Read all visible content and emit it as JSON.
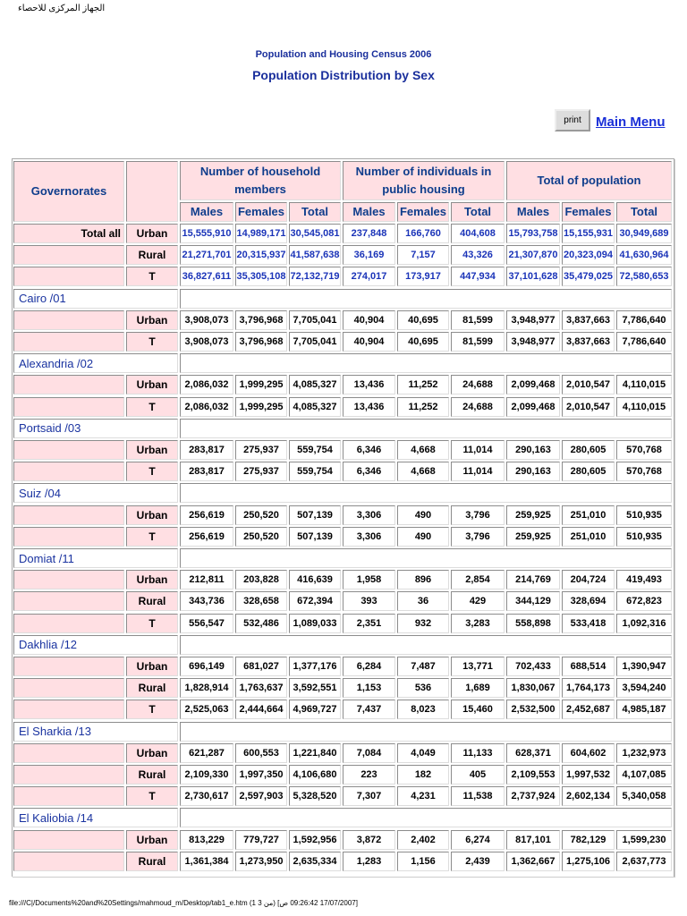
{
  "header": {
    "org": "الجهاز المركزى للاحصاء",
    "subtitle": "Population and Housing Census 2006",
    "title": "Population Distribution by Sex",
    "print": "print",
    "main_menu": "Main Menu"
  },
  "table": {
    "columns": {
      "governorates": "Governorates",
      "groups": [
        "Number of household members",
        "Number of individuals in public housing",
        "Total of population"
      ],
      "sub": [
        "Males",
        "Females",
        "Total",
        "Males",
        "Females",
        "Total",
        "Males",
        "Females",
        "Total"
      ]
    },
    "total": {
      "label": "Total all",
      "rows": [
        {
          "type": "Urban",
          "values": [
            "15,555,910",
            "14,989,171",
            "30,545,081",
            "237,848",
            "166,760",
            "404,608",
            "15,793,758",
            "15,155,931",
            "30,949,689"
          ]
        },
        {
          "type": "Rural",
          "values": [
            "21,271,701",
            "20,315,937",
            "41,587,638",
            "36,169",
            "7,157",
            "43,326",
            "21,307,870",
            "20,323,094",
            "41,630,964"
          ]
        },
        {
          "type": "T",
          "values": [
            "36,827,611",
            "35,305,108",
            "72,132,719",
            "274,017",
            "173,917",
            "447,934",
            "37,101,628",
            "35,479,025",
            "72,580,653"
          ]
        }
      ]
    },
    "sections": [
      {
        "name": "Cairo /01",
        "rows": [
          {
            "type": "Urban",
            "values": [
              "3,908,073",
              "3,796,968",
              "7,705,041",
              "40,904",
              "40,695",
              "81,599",
              "3,948,977",
              "3,837,663",
              "7,786,640"
            ]
          },
          {
            "type": "T",
            "values": [
              "3,908,073",
              "3,796,968",
              "7,705,041",
              "40,904",
              "40,695",
              "81,599",
              "3,948,977",
              "3,837,663",
              "7,786,640"
            ]
          }
        ]
      },
      {
        "name": "Alexandria /02",
        "rows": [
          {
            "type": "Urban",
            "values": [
              "2,086,032",
              "1,999,295",
              "4,085,327",
              "13,436",
              "11,252",
              "24,688",
              "2,099,468",
              "2,010,547",
              "4,110,015"
            ]
          },
          {
            "type": "T",
            "values": [
              "2,086,032",
              "1,999,295",
              "4,085,327",
              "13,436",
              "11,252",
              "24,688",
              "2,099,468",
              "2,010,547",
              "4,110,015"
            ]
          }
        ]
      },
      {
        "name": "Portsaid /03",
        "rows": [
          {
            "type": "Urban",
            "values": [
              "283,817",
              "275,937",
              "559,754",
              "6,346",
              "4,668",
              "11,014",
              "290,163",
              "280,605",
              "570,768"
            ]
          },
          {
            "type": "T",
            "values": [
              "283,817",
              "275,937",
              "559,754",
              "6,346",
              "4,668",
              "11,014",
              "290,163",
              "280,605",
              "570,768"
            ]
          }
        ]
      },
      {
        "name": "Suiz /04",
        "rows": [
          {
            "type": "Urban",
            "values": [
              "256,619",
              "250,520",
              "507,139",
              "3,306",
              "490",
              "3,796",
              "259,925",
              "251,010",
              "510,935"
            ]
          },
          {
            "type": "T",
            "values": [
              "256,619",
              "250,520",
              "507,139",
              "3,306",
              "490",
              "3,796",
              "259,925",
              "251,010",
              "510,935"
            ]
          }
        ]
      },
      {
        "name": "Domiat /11",
        "rows": [
          {
            "type": "Urban",
            "values": [
              "212,811",
              "203,828",
              "416,639",
              "1,958",
              "896",
              "2,854",
              "214,769",
              "204,724",
              "419,493"
            ]
          },
          {
            "type": "Rural",
            "values": [
              "343,736",
              "328,658",
              "672,394",
              "393",
              "36",
              "429",
              "344,129",
              "328,694",
              "672,823"
            ]
          },
          {
            "type": "T",
            "values": [
              "556,547",
              "532,486",
              "1,089,033",
              "2,351",
              "932",
              "3,283",
              "558,898",
              "533,418",
              "1,092,316"
            ]
          }
        ]
      },
      {
        "name": "Dakhlia /12",
        "rows": [
          {
            "type": "Urban",
            "values": [
              "696,149",
              "681,027",
              "1,377,176",
              "6,284",
              "7,487",
              "13,771",
              "702,433",
              "688,514",
              "1,390,947"
            ]
          },
          {
            "type": "Rural",
            "values": [
              "1,828,914",
              "1,763,637",
              "3,592,551",
              "1,153",
              "536",
              "1,689",
              "1,830,067",
              "1,764,173",
              "3,594,240"
            ]
          },
          {
            "type": "T",
            "values": [
              "2,525,063",
              "2,444,664",
              "4,969,727",
              "7,437",
              "8,023",
              "15,460",
              "2,532,500",
              "2,452,687",
              "4,985,187"
            ]
          }
        ]
      },
      {
        "name": "El Sharkia /13",
        "rows": [
          {
            "type": "Urban",
            "values": [
              "621,287",
              "600,553",
              "1,221,840",
              "7,084",
              "4,049",
              "11,133",
              "628,371",
              "604,602",
              "1,232,973"
            ]
          },
          {
            "type": "Rural",
            "values": [
              "2,109,330",
              "1,997,350",
              "4,106,680",
              "223",
              "182",
              "405",
              "2,109,553",
              "1,997,532",
              "4,107,085"
            ]
          },
          {
            "type": "T",
            "values": [
              "2,730,617",
              "2,597,903",
              "5,328,520",
              "7,307",
              "4,231",
              "11,538",
              "2,737,924",
              "2,602,134",
              "5,340,058"
            ]
          }
        ]
      },
      {
        "name": "El Kaliobia /14",
        "rows": [
          {
            "type": "Urban",
            "values": [
              "813,229",
              "779,727",
              "1,592,956",
              "3,872",
              "2,402",
              "6,274",
              "817,101",
              "782,129",
              "1,599,230"
            ]
          },
          {
            "type": "Rural",
            "values": [
              "1,361,384",
              "1,273,950",
              "2,635,334",
              "1,283",
              "1,156",
              "2,439",
              "1,362,667",
              "1,275,106",
              "2,637,773"
            ]
          }
        ]
      }
    ]
  },
  "footer": "file:///C|/Documents%20and%20Settings/mahmoud_m/Desktop/tab1_e.htm (1 من 3) [17/07/2007 09:26:42 ص]"
}
